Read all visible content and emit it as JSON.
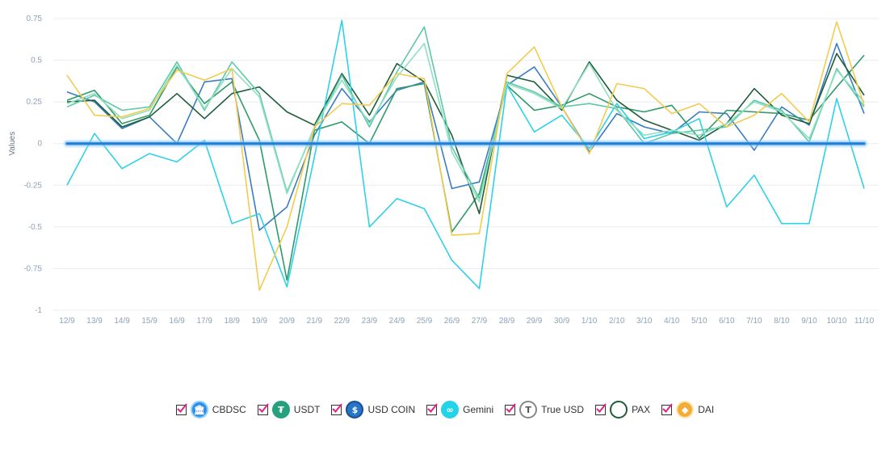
{
  "chart_data": {
    "type": "line",
    "ylabel": "Values",
    "xlabel": "",
    "ylim": [
      -1,
      0.75
    ],
    "yticks": [
      "0.75",
      "0.5",
      "0.25",
      "0",
      "-0.25",
      "-0.5",
      "-0.75",
      "-1"
    ],
    "yticks_values": [
      0.75,
      0.5,
      0.25,
      0,
      -0.25,
      -0.5,
      -0.75,
      -1
    ],
    "grid": true,
    "legend_placement": "bottom-center",
    "categories": [
      "12/9",
      "13/9",
      "14/9",
      "15/9",
      "16/9",
      "17/9",
      "18/9",
      "19/9",
      "20/9",
      "21/9",
      "22/9",
      "23/9",
      "24/9",
      "25/9",
      "26/9",
      "27/9",
      "28/9",
      "29/9",
      "30/9",
      "1/10",
      "2/10",
      "3/10",
      "4/10",
      "5/10",
      "6/10",
      "7/10",
      "8/10",
      "9/10",
      "10/10",
      "11/10"
    ],
    "baseline_value": 0,
    "series": [
      {
        "name": "CBDSC",
        "color": "#3a7cc2",
        "values": [
          0.31,
          0.25,
          0.09,
          0.16,
          0.0,
          0.37,
          0.39,
          -0.52,
          -0.38,
          0.05,
          0.33,
          0.13,
          0.32,
          0.37,
          -0.27,
          -0.23,
          0.35,
          0.46,
          0.22,
          -0.05,
          0.18,
          0.1,
          0.06,
          0.19,
          0.18,
          -0.04,
          0.22,
          0.11,
          0.6,
          0.18
        ]
      },
      {
        "name": "USDT",
        "color": "#2e9a6a",
        "values": [
          0.26,
          0.32,
          0.12,
          0.17,
          0.46,
          0.24,
          0.37,
          0.02,
          -0.82,
          0.08,
          0.13,
          0.0,
          0.33,
          0.36,
          -0.53,
          -0.3,
          0.35,
          0.2,
          0.23,
          0.3,
          0.22,
          0.19,
          0.23,
          0.03,
          0.2,
          0.19,
          0.18,
          0.14,
          0.34,
          0.53
        ]
      },
      {
        "name": "USD COIN",
        "color": "#1f5c3a",
        "values": [
          0.25,
          0.26,
          0.1,
          0.16,
          0.3,
          0.15,
          0.3,
          0.34,
          0.19,
          0.11,
          0.42,
          0.17,
          0.48,
          0.37,
          0.05,
          -0.42,
          0.41,
          0.37,
          0.2,
          0.49,
          0.26,
          0.14,
          0.08,
          0.02,
          0.12,
          0.33,
          0.17,
          0.12,
          0.54,
          0.29
        ]
      },
      {
        "name": "Gemini",
        "color": "#2ed2e8",
        "values": [
          -0.25,
          0.06,
          -0.15,
          -0.06,
          -0.11,
          0.02,
          -0.48,
          -0.42,
          -0.86,
          -0.08,
          0.74,
          -0.5,
          -0.33,
          -0.39,
          -0.7,
          -0.87,
          0.35,
          0.07,
          0.17,
          -0.03,
          0.24,
          0.03,
          0.07,
          0.15,
          -0.38,
          -0.19,
          -0.48,
          -0.48,
          0.27,
          -0.27
        ]
      },
      {
        "name": "True USD",
        "color": "#5ec8a8",
        "values": [
          0.22,
          0.29,
          0.2,
          0.22,
          0.49,
          0.2,
          0.49,
          0.3,
          -0.29,
          0.09,
          0.41,
          0.1,
          0.43,
          0.7,
          -0.02,
          -0.33,
          0.37,
          0.31,
          0.22,
          0.24,
          0.21,
          0.0,
          0.06,
          0.08,
          0.1,
          0.26,
          0.2,
          0.01,
          0.45,
          0.22
        ]
      },
      {
        "name": "PAX",
        "color": "#8ee0c2",
        "values": [
          0.24,
          0.3,
          0.15,
          0.2,
          0.47,
          0.21,
          0.45,
          0.28,
          -0.3,
          0.1,
          0.38,
          0.12,
          0.4,
          0.6,
          -0.05,
          -0.35,
          0.36,
          0.3,
          0.21,
          0.48,
          0.2,
          0.05,
          0.08,
          0.05,
          0.12,
          0.25,
          0.19,
          0.03,
          0.44,
          0.25
        ]
      },
      {
        "name": "DAI",
        "color": "#f3cb4f",
        "values": [
          0.41,
          0.17,
          0.16,
          0.21,
          0.44,
          0.38,
          0.45,
          -0.88,
          -0.5,
          0.1,
          0.24,
          0.23,
          0.42,
          0.39,
          -0.55,
          -0.54,
          0.42,
          0.58,
          0.22,
          -0.06,
          0.36,
          0.33,
          0.18,
          0.24,
          0.1,
          0.17,
          0.3,
          0.13,
          0.73,
          0.23
        ]
      }
    ]
  },
  "legend": [
    {
      "label": "CBDSC",
      "icon": "cbdsc-coin-icon",
      "glyph": "🏛",
      "bg": "#2f8fe8",
      "ring": "#8fd0ff"
    },
    {
      "label": "USDT",
      "icon": "tether-coin-icon",
      "glyph": "₮",
      "bg": "#26a17b",
      "ring": "#26a17b"
    },
    {
      "label": "USD COIN",
      "icon": "usdc-coin-icon",
      "glyph": "$",
      "bg": "#2775ca",
      "ring": "#1b4f8a"
    },
    {
      "label": "Gemini",
      "icon": "gemini-coin-icon",
      "glyph": "∞",
      "bg": "#25d3e8",
      "ring": "#25d3e8"
    },
    {
      "label": "True USD",
      "icon": "trueusd-coin-icon",
      "glyph": "T",
      "bg": "#ffffff",
      "ring": "#888888"
    },
    {
      "label": "PAX",
      "icon": "pax-coin-icon",
      "glyph": "",
      "bg": "#ffffff",
      "ring": "#1f5c3a"
    },
    {
      "label": "DAI",
      "icon": "dai-coin-icon",
      "glyph": "◆",
      "bg": "#f5ac37",
      "ring": "#fde7b5"
    }
  ],
  "colors": {
    "checkbox_check": "#e0218a",
    "baseline": "#1f7fd6",
    "grid": "#e8edf2"
  }
}
